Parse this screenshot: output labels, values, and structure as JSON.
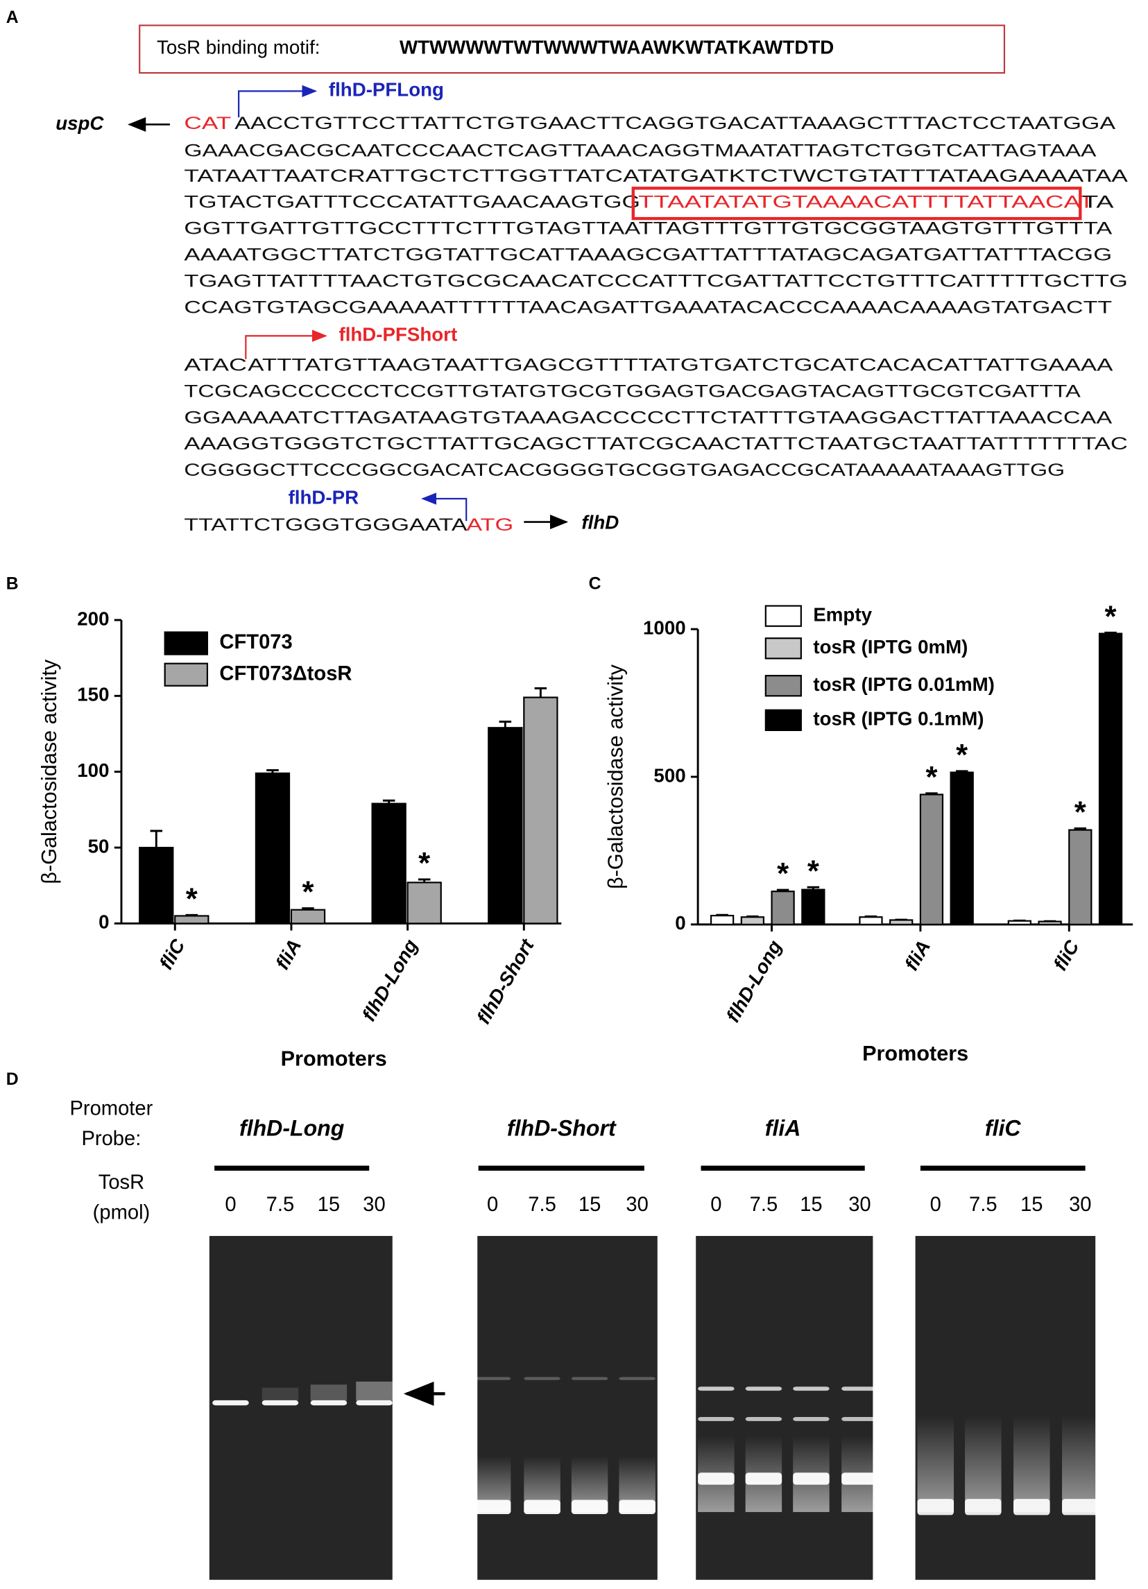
{
  "panel_labels": [
    "A",
    "B",
    "C",
    "D"
  ],
  "motif": {
    "label": "TosR  binding motif:",
    "sequence": "WTWWWWTWTWWWTWAAWKWTATKAWTDTD"
  },
  "sequence": {
    "upstream_gene": "uspC",
    "upstream_codon": "CAT",
    "lines": [
      "AACCTGTTCCTTATTCTGTGAACTTCAGGTGACATTAAAGCTTTACTCCTAATGGA",
      "GAAACGACGCAATCCCAACTCAGTTAAACAGGTMAATATTAGTCTGGTCATTAGTAAA",
      "TATAATTAATCRATTGCTCTTGGTTATCATATGATKTCTWCTGTATTTATAAGAAAATAA",
      "TGTACTGATTTCCCATATTGAACAAGTGG",
      "GGTTGATTGTTGCCTTTCTTTGTAGTTAATTAGTTTGTTGTGCGGTAAGTGTTTGTTTA",
      "AAAATGGCTTATCTGGTATTGCATTAAAGCGATTATTTATAGCAGATGATTATTTACGG",
      "TGAGTTATTTTAACTGTGCGCAACATCCCATTTCGATTATTCCTGTTTCATTTTTGCTTG",
      "CCAGTGTAGCGAAAAATTTTTTAACAGATTGAAATACACCCAAAACAAAAGTATGACTT",
      "ATTTATGTTAAGTAATTGAGCGTTTTATGTGATCTGCATCACACATTATTGAAAA",
      "TCGCAGCCCCCCTCCGTTGTATGTGCGTGGAGTGACGAGTACAGTTGCGTCGATTTA",
      "GGAAAAATCTTAGATAAGTGTAAAGACCCCCTTCTATTTGTAAGGACTTATTAAACCAA",
      "AAAGGTGGGTCTGCTTATTGCAGCTTATCGCAACTATTCTAATGCTAATTATTTTTTTAC",
      "CGGGGCTTCCCGGCGACATCACGGGGTGCGGTGAGACCGCATAAAAATAAAGTTGG",
      "TTATTCTGGGTGGGAATA"
    ],
    "box": "TTAATATATGTAAAACATTTTATTAACAT",
    "box_tail": "TA",
    "short_prefix": "ATAC",
    "start_codon": "ATG",
    "downstream_gene": "flhD",
    "primers": [
      "flhD-PFLong",
      "flhD-PFShort",
      "flhD-PR"
    ]
  },
  "chart_data": [
    {
      "type": "bar",
      "ylabel": "β-Galactosidase activity",
      "xlabel": "Promoters",
      "categories": [
        "fliC",
        "fliA",
        "flhD-Long",
        "flhD-Short"
      ],
      "series": [
        {
          "name": "CFT073",
          "color": "#000000",
          "values": [
            50,
            99,
            79,
            129
          ],
          "errors": [
            11,
            2,
            2,
            4
          ],
          "annotations": [
            null,
            null,
            null,
            null
          ]
        },
        {
          "name": "CFT073ΔtosR",
          "color": "#a6a6a6",
          "values": [
            5,
            9,
            27,
            149
          ],
          "errors": [
            0.5,
            1,
            2,
            6
          ],
          "annotations": [
            "*",
            "*",
            "*",
            null
          ]
        }
      ],
      "ylim": [
        0,
        200
      ],
      "yticks": [
        0,
        50,
        100,
        150,
        200
      ],
      "legend": "upper left"
    },
    {
      "type": "bar",
      "ylabel": "β-Galactosidase activity",
      "xlabel": "Promoters",
      "categories": [
        "flhD-Long",
        "fliA",
        "fliC"
      ],
      "series": [
        {
          "name": "Empty",
          "color": "#ffffff",
          "values": [
            30,
            25,
            12
          ],
          "errors": [
            2,
            2,
            1
          ],
          "annotations": [
            null,
            null,
            null
          ]
        },
        {
          "name": "tosR (IPTG 0mM)",
          "color": "#c8c8c8",
          "values": [
            25,
            15,
            10
          ],
          "errors": [
            2,
            1,
            1
          ],
          "annotations": [
            null,
            null,
            null
          ]
        },
        {
          "name": "tosR (IPTG 0.01mM)",
          "color": "#8c8c8c",
          "values": [
            112,
            440,
            320
          ],
          "errors": [
            5,
            4,
            5
          ],
          "annotations": [
            "*",
            "*",
            "*"
          ]
        },
        {
          "name": "tosR (IPTG 0.1mM)",
          "color": "#000000",
          "values": [
            118,
            515,
            985
          ],
          "errors": [
            8,
            4,
            3
          ],
          "annotations": [
            "*",
            "*",
            "*"
          ]
        }
      ],
      "ylim": [
        0,
        1000
      ],
      "yticks": [
        0,
        500,
        1000
      ],
      "legend": "upper left"
    }
  ],
  "emsa": {
    "probe_label": [
      "Promoter",
      "Probe:"
    ],
    "amount_label": [
      "TosR",
      "(pmol)"
    ],
    "probes": [
      "flhD-Long",
      "flhD-Short",
      "fliA",
      "fliC"
    ],
    "amounts": [
      "0",
      "7.5",
      "15",
      "30"
    ]
  }
}
